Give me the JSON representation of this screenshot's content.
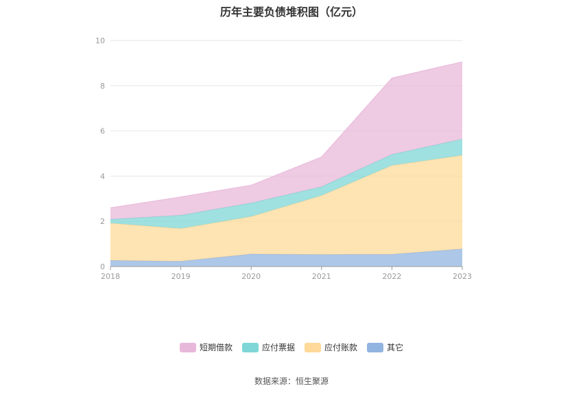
{
  "chart_data": {
    "type": "area",
    "stacked": true,
    "title": "历年主要负债堆积图（亿元）",
    "x": [
      "2018",
      "2019",
      "2020",
      "2021",
      "2022",
      "2023"
    ],
    "ylim": [
      0,
      10
    ],
    "yticks": [
      0,
      2,
      4,
      6,
      8,
      10
    ],
    "grid": true,
    "legend_position": "bottom-center",
    "series": [
      {
        "name": "其它",
        "color": "#92b4e0",
        "values": [
          0.27,
          0.23,
          0.55,
          0.53,
          0.54,
          0.78
        ]
      },
      {
        "name": "应付账款",
        "color": "#fed999",
        "values": [
          1.65,
          1.45,
          1.66,
          2.61,
          3.93,
          4.14
        ]
      },
      {
        "name": "应付票据",
        "color": "#7fd6d6",
        "values": [
          0.17,
          0.59,
          0.6,
          0.39,
          0.49,
          0.72
        ]
      },
      {
        "name": "短期借款",
        "color": "#e8b8da",
        "values": [
          0.51,
          0.81,
          0.79,
          1.32,
          3.38,
          3.42
        ]
      }
    ]
  },
  "source_text": "数据来源：恒生聚源"
}
